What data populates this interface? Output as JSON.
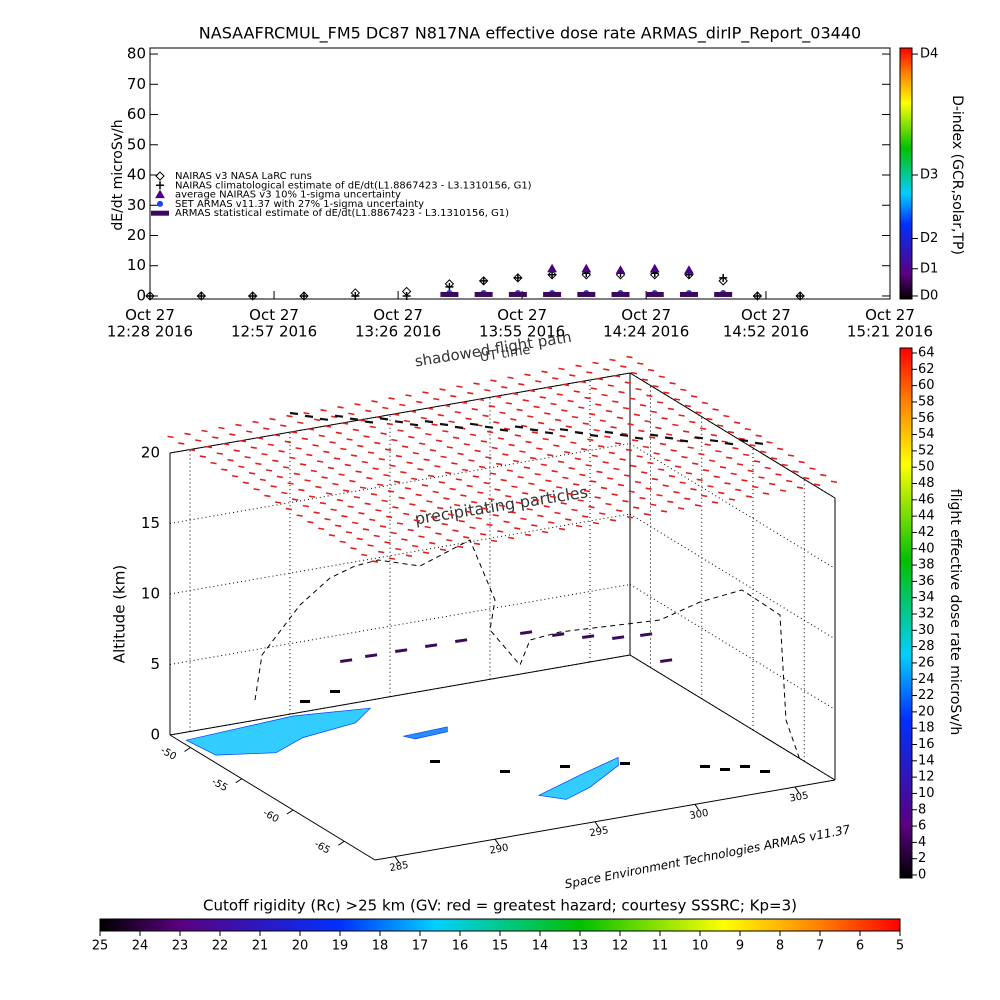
{
  "chart_data": [
    {
      "type": "line",
      "title": "NASAAFRCMUL_FM5 DC87 N817NA effective dose rate ARMAS_dirIP_Report_03440",
      "ylabel": "dE/dt microSv/h",
      "y2label": "D-index (GCR,solar,TP)",
      "x": [
        "2016-10-27T12:28",
        "2016-10-27T12:40",
        "2016-10-27T12:52",
        "2016-10-27T13:04",
        "2016-10-27T13:16",
        "2016-10-27T13:28",
        "2016-10-27T13:38",
        "2016-10-27T13:46",
        "2016-10-27T13:54",
        "2016-10-27T14:02",
        "2016-10-27T14:10",
        "2016-10-27T14:18",
        "2016-10-27T14:26",
        "2016-10-27T14:34",
        "2016-10-27T14:42",
        "2016-10-27T14:50",
        "2016-10-27T15:00"
      ],
      "xlim": [
        "2016-10-27T12:28",
        "2016-10-27T15:21"
      ],
      "xticks": [
        {
          "value": "2016-10-27T12:28",
          "label": "Oct 27\n12:28 2016"
        },
        {
          "value": "2016-10-27T12:57",
          "label": "Oct 27\n12:57 2016"
        },
        {
          "value": "2016-10-27T13:26",
          "label": "Oct 27\n13:26 2016"
        },
        {
          "value": "2016-10-27T13:55",
          "label": "Oct 27\n13:55 2016"
        },
        {
          "value": "2016-10-27T14:24",
          "label": "Oct 27\n14:24 2016"
        },
        {
          "value": "2016-10-27T14:52",
          "label": "Oct 27\n14:52 2016"
        },
        {
          "value": "2016-10-27T15:21",
          "label": "Oct 27\n15:21 2016"
        }
      ],
      "ylim": [
        -1,
        82
      ],
      "yticks": [
        0,
        10,
        20,
        30,
        40,
        50,
        60,
        70,
        80
      ],
      "y2lim": [
        -1,
        82
      ],
      "y2ticks": [
        {
          "value": 0,
          "label": "D0"
        },
        {
          "value": 9,
          "label": "D1"
        },
        {
          "value": 19,
          "label": "D2"
        },
        {
          "value": 40,
          "label": "D3"
        },
        {
          "value": 80,
          "label": "D4"
        }
      ],
      "series": [
        {
          "name": "NAIRAS v3 NASA LaRC runs",
          "color": "#000000",
          "marker": "diamond",
          "values": [
            0,
            0,
            0,
            0,
            1,
            1.5,
            4,
            5,
            6,
            7,
            7,
            7,
            7,
            7,
            5,
            0,
            0
          ]
        },
        {
          "name": "NAIRAS climatological estimate of dE/dt(L1.8867423 - L3.1310156, G1)",
          "color": "#000000",
          "marker": "plus",
          "values": [
            0,
            0,
            0,
            0,
            0,
            0,
            3,
            5,
            6,
            7,
            7.5,
            7.5,
            7.5,
            7,
            6,
            0,
            0
          ]
        },
        {
          "name": "average NAIRAS v3 10% 1-sigma uncertainty",
          "color": "#4b0082",
          "marker": "triangle",
          "values": [
            null,
            null,
            null,
            null,
            null,
            null,
            null,
            null,
            null,
            9,
            9,
            8.5,
            9,
            8.5,
            null,
            null,
            null
          ]
        },
        {
          "name": "SET ARMAS v11.37 with 27% 1-sigma uncertainty",
          "color": "#1f3fff",
          "marker": "circle",
          "values": [
            null,
            null,
            null,
            null,
            null,
            null,
            1,
            1,
            1,
            1,
            1,
            1,
            1,
            1,
            1,
            null,
            null
          ]
        },
        {
          "name": "ARMAS statistical estimate of dE/dt(L1.8867423 - L3.1310156, G1)",
          "color": "#3c0a5a",
          "marker": "dash",
          "values": [
            null,
            null,
            null,
            null,
            null,
            null,
            0.5,
            0.5,
            0.5,
            0.5,
            0.5,
            0.5,
            0.5,
            0.5,
            0.5,
            null,
            null
          ]
        }
      ]
    },
    {
      "type": "surface3d",
      "zlabel": "Altitude (km)",
      "annotations": [
        "shadowed flight path",
        "UT time",
        "precipitating particles"
      ],
      "credit": "Space Environment Technologies ARMAS v11.37",
      "xlim": [
        284,
        307
      ],
      "xticks": [
        285,
        290,
        295,
        300,
        305
      ],
      "ylim": [
        -68,
        -48
      ],
      "yticks": [
        -50,
        -55,
        -60,
        -65
      ],
      "zlim": [
        0,
        20
      ],
      "zticks": [
        0,
        5,
        10,
        15,
        20
      ],
      "colorbar_label": "flight effective dose rate microSv/h",
      "colorbar_lim": [
        0,
        64
      ],
      "colorbar_ticks": [
        0,
        2,
        4,
        6,
        8,
        10,
        12,
        14,
        16,
        18,
        20,
        22,
        24,
        26,
        28,
        30,
        32,
        34,
        36,
        38,
        40,
        42,
        44,
        46,
        48,
        50,
        52,
        54,
        56,
        58,
        60,
        62,
        64
      ],
      "rigidity_label": "Cutoff rigidity (Rc) >25 km (GV: red = greatest hazard; courtesy SSSRC; Kp=3)",
      "rigidity_lim": [
        25,
        5
      ],
      "rigidity_ticks": [
        25,
        24,
        23,
        22,
        21,
        20,
        19,
        18,
        17,
        16,
        15,
        14,
        13,
        12,
        11,
        10,
        9,
        8,
        7,
        6,
        5
      ]
    }
  ]
}
